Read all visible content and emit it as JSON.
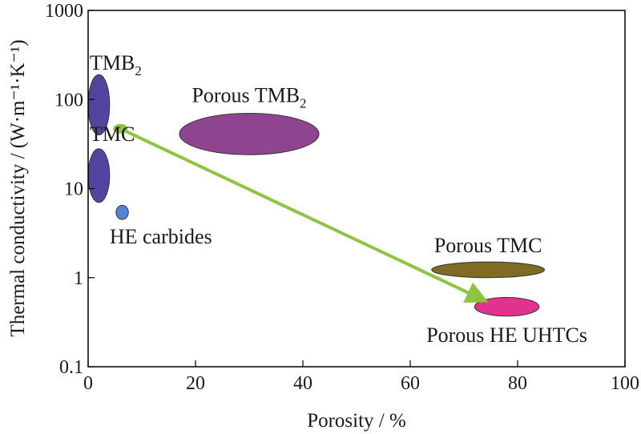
{
  "chart_data": {
    "type": "scatter",
    "xlabel": "Porosity / %",
    "ylabel": "Thermal conductivity / (W·m⁻¹·K⁻¹)",
    "xlim": [
      0,
      100
    ],
    "ylim": [
      0.1,
      1000
    ],
    "yscale": "log",
    "grid": false,
    "x_ticks": [
      "0",
      "20",
      "40",
      "60",
      "80",
      "100"
    ],
    "y_ticks": [
      "0.1",
      "1",
      "10",
      "100",
      "1000"
    ],
    "regions": [
      {
        "label": "TMB",
        "subscript": "2",
        "x_range": [
          0,
          4
        ],
        "y_range": [
          40,
          190
        ],
        "color": "#4a3a9a"
      },
      {
        "label": "TMC",
        "subscript": "",
        "x_range": [
          0,
          4
        ],
        "y_range": [
          7,
          28
        ],
        "color": "#4a3a9a"
      },
      {
        "label": "HE carbides",
        "subscript": "",
        "x_range": [
          5.2,
          7.5
        ],
        "y_range": [
          4.5,
          6.5
        ],
        "color": "#4a7fd4"
      },
      {
        "label": "Porous TMB",
        "subscript": "2",
        "x_range": [
          17,
          43
        ],
        "y_range": [
          24,
          70
        ],
        "color": "#8a3a8a"
      },
      {
        "label": "Porous TMC",
        "subscript": "",
        "x_range": [
          64,
          85
        ],
        "y_range": [
          1.0,
          1.5
        ],
        "color": "#7a6418"
      },
      {
        "label": "Porous HE UHTCs",
        "subscript": "",
        "x_range": [
          72,
          84
        ],
        "y_range": [
          0.37,
          0.6
        ],
        "color": "#e0288a"
      }
    ],
    "trend_arrow": {
      "from": {
        "x": 6,
        "y": 47
      },
      "to": {
        "x": 74,
        "y": 0.55
      },
      "color": "#8cc63f"
    }
  }
}
